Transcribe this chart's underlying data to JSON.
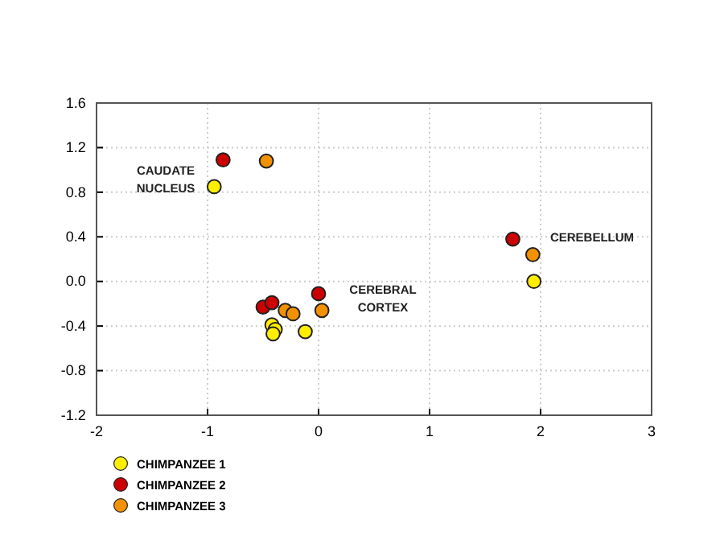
{
  "chart_data": {
    "type": "scatter",
    "marker": "circle",
    "grid": true,
    "legend": "bottom left",
    "xlim": [
      -2,
      3
    ],
    "xticks": [
      -2,
      -1,
      0,
      1,
      2,
      3
    ],
    "ylim": [
      -1.2,
      1.6
    ],
    "yticks": [
      {
        "value": -1.2,
        "label": "-1.2"
      },
      {
        "value": -0.8,
        "label": "-0.8"
      },
      {
        "value": -0.4,
        "label": "-0.4"
      },
      {
        "value": 0,
        "label": "0.0"
      },
      {
        "value": 0.4,
        "label": "0.4"
      },
      {
        "value": 0.8,
        "label": "0.8"
      },
      {
        "value": 1.2,
        "label": "1.2"
      },
      {
        "value": 1.6,
        "label": "1.6"
      }
    ],
    "series": [
      {
        "name": "CHIMPANZEE 1",
        "color": "#ffee00",
        "x": [
          -0.94,
          -0.42,
          -0.39,
          -0.41,
          -0.12,
          1.94
        ],
        "values": [
          0.85,
          -0.39,
          -0.43,
          -0.47,
          -0.45,
          0.0
        ]
      },
      {
        "name": "CHIMPANZEE 2",
        "color": "#cc0000",
        "x": [
          -0.86,
          -0.5,
          -0.42,
          0.0,
          1.75
        ],
        "values": [
          1.09,
          -0.23,
          -0.19,
          -0.11,
          0.38
        ]
      },
      {
        "name": "CHIMPANZEE 3",
        "color": "#f39200",
        "x": [
          -0.47,
          -0.3,
          -0.23,
          0.03,
          1.93
        ],
        "values": [
          1.08,
          -0.26,
          -0.29,
          -0.26,
          0.24
        ]
      }
    ],
    "annotations": [
      "CAUDATE NUCLEUS",
      "CEREBRAL CORTEX",
      "CEREBELLUM"
    ]
  }
}
